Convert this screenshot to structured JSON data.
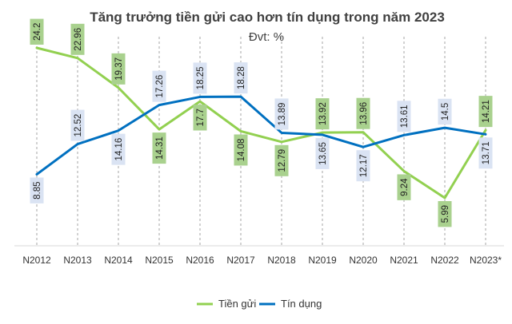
{
  "chart_data": {
    "type": "line",
    "title": "Tăng trưởng tiền gửi cao hơn tín dụng trong năm 2023",
    "subtitle": "Đvt: %",
    "categories": [
      "N2012",
      "N2013",
      "N2014",
      "N2015",
      "N2016",
      "N2017",
      "N2018",
      "N2019",
      "N2020",
      "N2021",
      "N2022",
      "N2023*"
    ],
    "series": [
      {
        "name": "Tiền gửi",
        "color": "#92D050",
        "label_bg": "#A9D18E",
        "values": [
          24.2,
          22.96,
          19.37,
          14.31,
          17.7,
          14.08,
          12.79,
          13.92,
          13.96,
          9.24,
          5.99,
          14.21
        ]
      },
      {
        "name": "Tín dụng",
        "color": "#0070C0",
        "label_bg": "#DAE3F3",
        "values": [
          8.85,
          12.52,
          14.16,
          17.26,
          18.25,
          18.28,
          13.89,
          13.65,
          12.17,
          13.61,
          14.5,
          13.71
        ]
      }
    ],
    "ylim": [
      0,
      25
    ],
    "grid": "vertical-dashed",
    "legend_position": "bottom"
  }
}
